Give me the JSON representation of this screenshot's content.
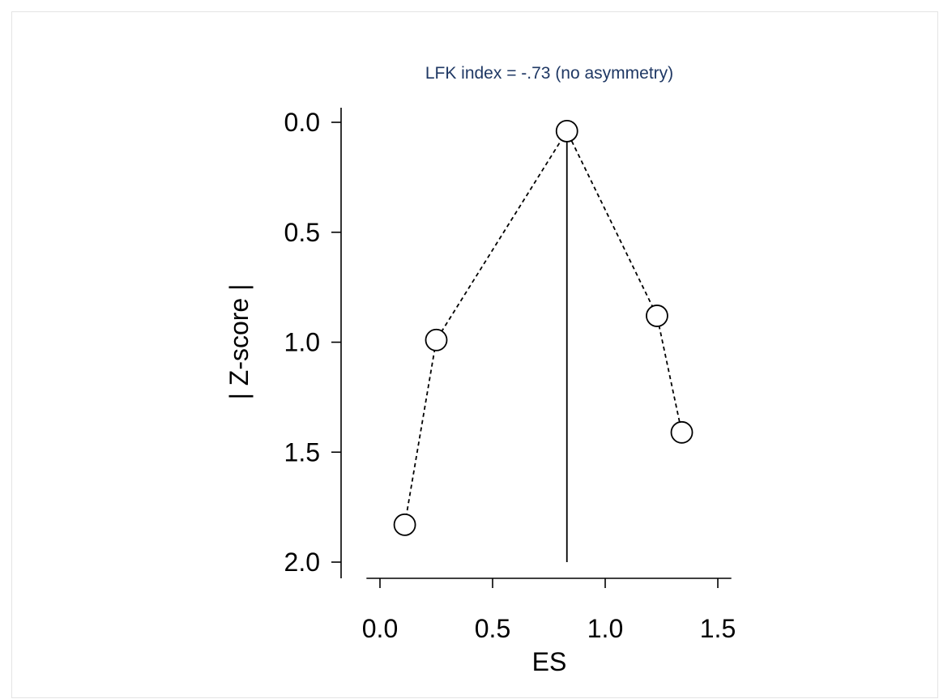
{
  "chart_data": {
    "type": "scatter",
    "title": "LFK index = -.73 (no asymmetry)",
    "xlabel": "ES",
    "ylabel": "| Z-score |",
    "xlim": [
      -0.06,
      1.56
    ],
    "ylim": [
      0.0,
      2.0
    ],
    "y_inverted": true,
    "x_ticks": [
      "0.0",
      "0.5",
      "1.0",
      "1.5"
    ],
    "y_ticks": [
      "0.0",
      "0.5",
      "1.0",
      "1.5",
      "2.0"
    ],
    "grid": false,
    "points": [
      {
        "x": 0.11,
        "y": 1.83
      },
      {
        "x": 0.25,
        "y": 0.99
      },
      {
        "x": 0.83,
        "y": 0.04
      },
      {
        "x": 1.23,
        "y": 0.88
      },
      {
        "x": 1.34,
        "y": 1.41
      }
    ],
    "connecting_line": "dashed",
    "reference_line": {
      "x": 0.83,
      "y_from": 0.04,
      "y_to": 2.0
    }
  },
  "colors": {
    "title": "#1f3864",
    "axis": "#000000",
    "marker_fill": "#ffffff",
    "marker_stroke": "#000000",
    "frame_border": "#e4e4e4"
  }
}
